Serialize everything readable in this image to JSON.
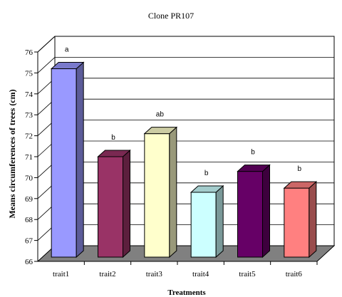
{
  "chart_data": {
    "type": "bar",
    "title": "Clone PR107",
    "xlabel": "Treatments",
    "ylabel": "Means circumferences of trees (cm)",
    "categories": [
      "trait1",
      "trait2",
      "trait3",
      "trait4",
      "trait5",
      "trait6"
    ],
    "values": [
      75.2,
      71.0,
      72.1,
      69.3,
      70.3,
      69.5
    ],
    "annotations": [
      "a",
      "b",
      "ab",
      "b",
      "b",
      "b"
    ],
    "ylim": [
      66,
      76
    ],
    "yticks": [
      "66",
      "67",
      "68",
      "69",
      "70",
      "71",
      "72",
      "73",
      "74",
      "75",
      "76"
    ],
    "grid": true,
    "legend": "none",
    "colors": {
      "front": [
        "#9999FF",
        "#993366",
        "#FFFFCC",
        "#CCFFFF",
        "#660066",
        "#FF8080"
      ],
      "side": [
        "#5C5C99",
        "#5C1F3D",
        "#99997A",
        "#7A9999",
        "#3D003D",
        "#994D4D"
      ],
      "top": [
        "#7A7ACC",
        "#7A2952",
        "#CCCCA3",
        "#A3CCCC",
        "#520052",
        "#CC6666"
      ],
      "floor": "#808080"
    }
  }
}
